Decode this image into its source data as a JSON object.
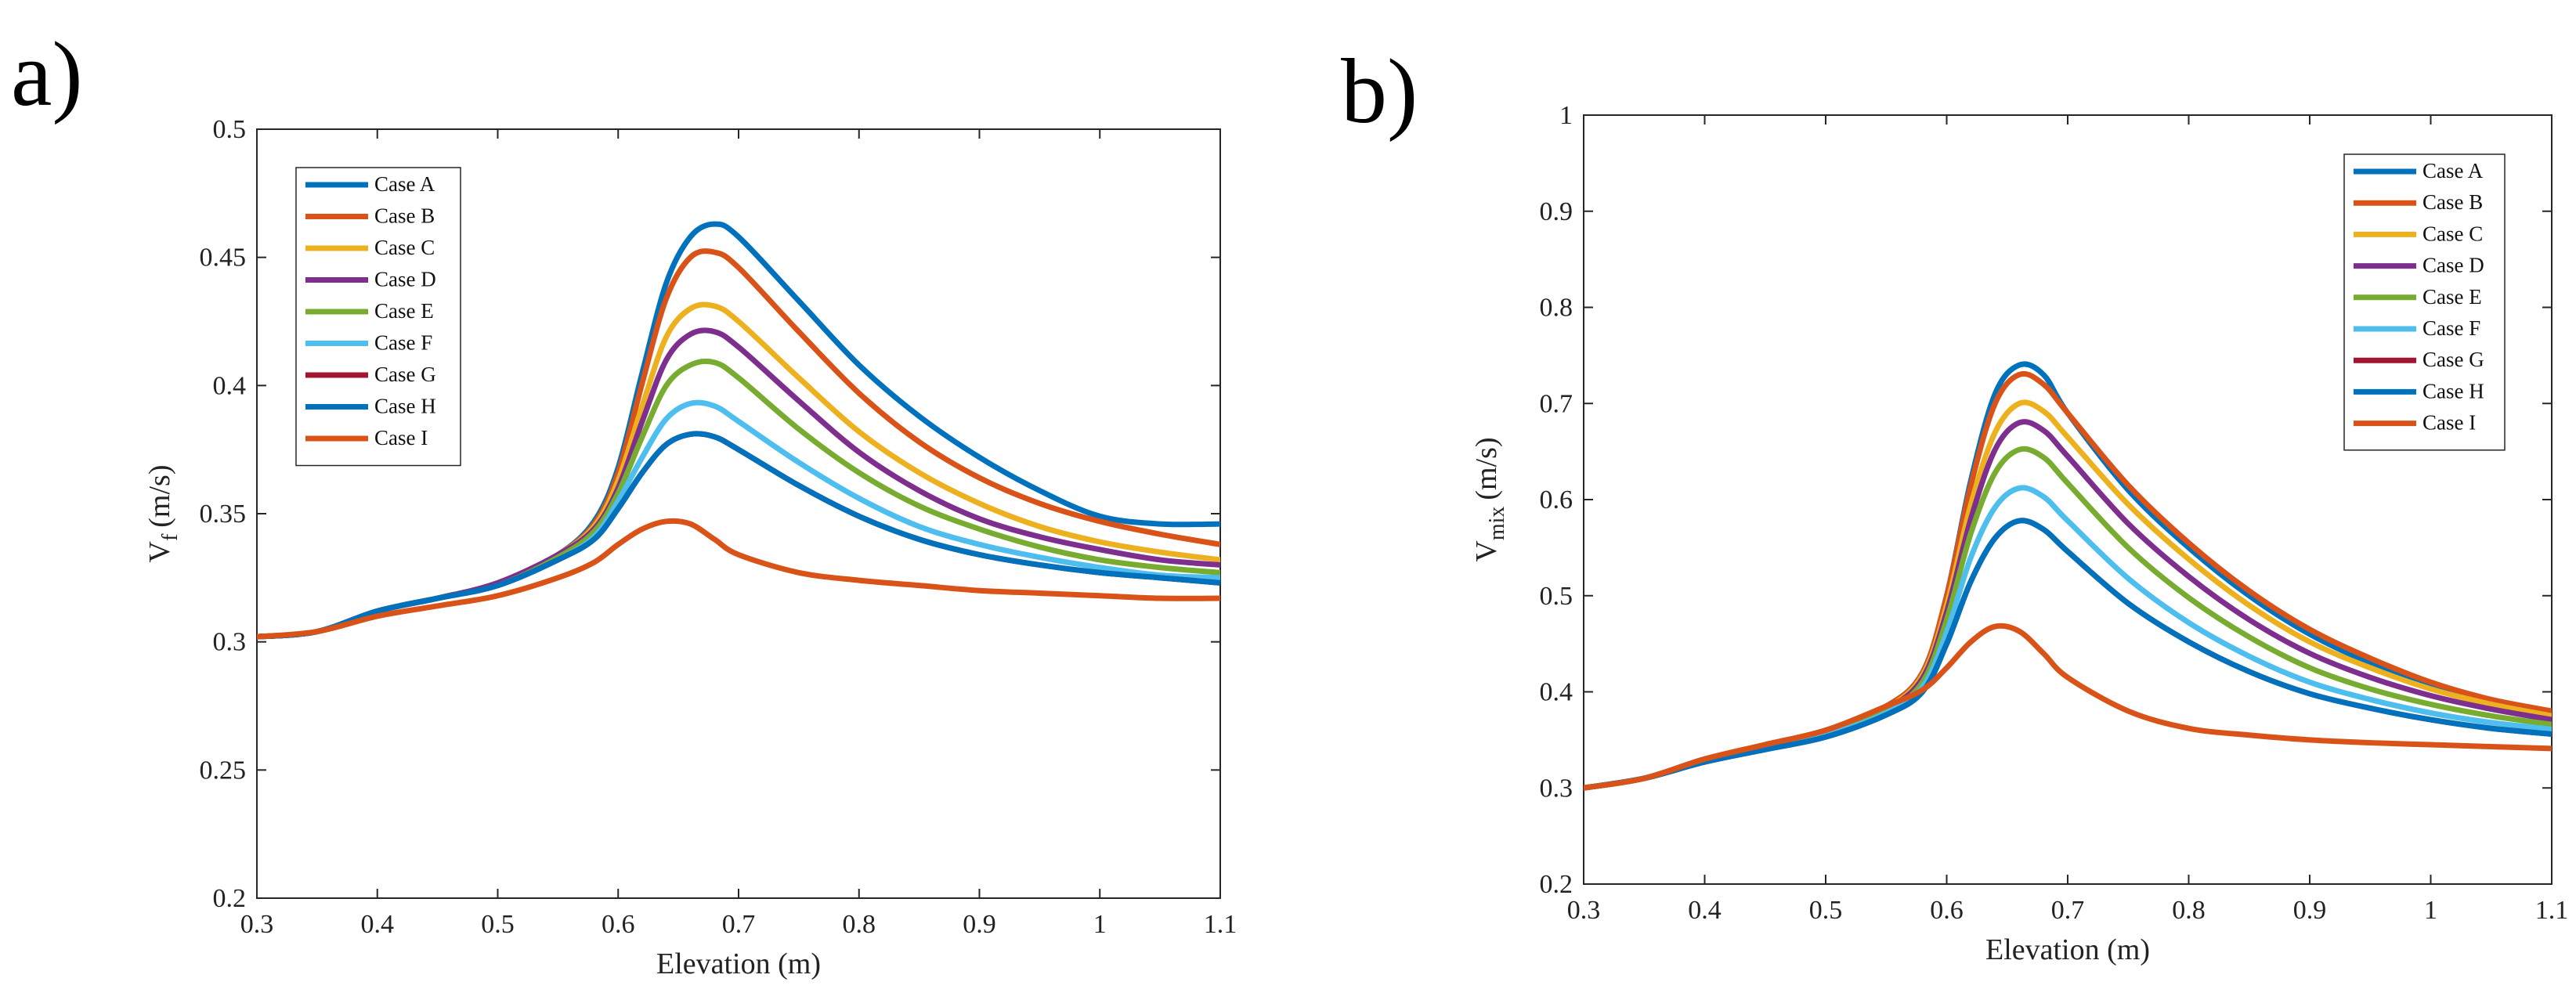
{
  "panels": [
    {
      "label": "a)"
    },
    {
      "label": "b)"
    }
  ],
  "chart_data": [
    {
      "type": "line",
      "panel": "a)",
      "xlabel": "Elevation (m)",
      "ylabel": "V",
      "ylabel_sub": "f",
      "ylabel_unit": "(m/s)",
      "xlim": [
        0.3,
        1.1
      ],
      "ylim": [
        0.2,
        0.5
      ],
      "xticks": [
        "0.3",
        "0.4",
        "0.5",
        "0.6",
        "0.7",
        "0.8",
        "0.9",
        "1",
        "1.1"
      ],
      "yticks": [
        "0.2",
        "0.25",
        "0.3",
        "0.35",
        "0.4",
        "0.45",
        "0.5"
      ],
      "legend_position": "top-left",
      "x": [
        0.3,
        0.35,
        0.4,
        0.45,
        0.5,
        0.55,
        0.58,
        0.6,
        0.62,
        0.64,
        0.66,
        0.68,
        0.7,
        0.75,
        0.8,
        0.85,
        0.9,
        0.95,
        1.0,
        1.05,
        1.1
      ],
      "series": [
        {
          "name": "Case A",
          "color": "#0072BD",
          "values": [
            0.302,
            0.304,
            0.312,
            0.317,
            0.323,
            0.334,
            0.347,
            0.368,
            0.405,
            0.44,
            0.458,
            0.463,
            0.458,
            0.433,
            0.408,
            0.388,
            0.372,
            0.359,
            0.349,
            0.346,
            0.346
          ]
        },
        {
          "name": "Case B",
          "color": "#D95319",
          "values": [
            0.302,
            0.304,
            0.312,
            0.317,
            0.323,
            0.334,
            0.346,
            0.366,
            0.401,
            0.434,
            0.45,
            0.452,
            0.446,
            0.421,
            0.397,
            0.378,
            0.364,
            0.354,
            0.347,
            0.342,
            0.338
          ]
        },
        {
          "name": "Case C",
          "color": "#EDB120",
          "values": [
            0.302,
            0.304,
            0.312,
            0.317,
            0.323,
            0.334,
            0.345,
            0.363,
            0.392,
            0.419,
            0.43,
            0.431,
            0.425,
            0.403,
            0.382,
            0.366,
            0.354,
            0.345,
            0.339,
            0.335,
            0.332
          ]
        },
        {
          "name": "Case D",
          "color": "#7E2F8E",
          "values": [
            0.302,
            0.304,
            0.312,
            0.317,
            0.323,
            0.334,
            0.344,
            0.36,
            0.386,
            0.41,
            0.42,
            0.421,
            0.415,
            0.394,
            0.374,
            0.359,
            0.348,
            0.341,
            0.336,
            0.332,
            0.33
          ]
        },
        {
          "name": "Case E",
          "color": "#77AC30",
          "values": [
            0.302,
            0.304,
            0.312,
            0.317,
            0.322,
            0.333,
            0.343,
            0.358,
            0.38,
            0.4,
            0.408,
            0.409,
            0.403,
            0.383,
            0.366,
            0.353,
            0.344,
            0.337,
            0.332,
            0.329,
            0.327
          ]
        },
        {
          "name": "Case F",
          "color": "#4DBEEE",
          "values": [
            0.302,
            0.304,
            0.312,
            0.317,
            0.322,
            0.332,
            0.341,
            0.355,
            0.372,
            0.387,
            0.393,
            0.392,
            0.386,
            0.37,
            0.356,
            0.345,
            0.338,
            0.333,
            0.329,
            0.326,
            0.325
          ]
        },
        {
          "name": "Case G",
          "color": "#A2142F",
          "values": [
            0.302,
            0.304,
            0.312,
            0.317,
            0.322,
            0.332,
            0.34,
            0.352,
            0.366,
            0.377,
            0.381,
            0.38,
            0.375,
            0.361,
            0.349,
            0.34,
            0.334,
            0.33,
            0.327,
            0.325,
            0.323
          ]
        },
        {
          "name": "Case H",
          "color": "#0072BD",
          "values": [
            0.302,
            0.304,
            0.312,
            0.317,
            0.322,
            0.332,
            0.34,
            0.352,
            0.366,
            0.377,
            0.381,
            0.38,
            0.375,
            0.361,
            0.349,
            0.34,
            0.334,
            0.33,
            0.327,
            0.325,
            0.323
          ]
        },
        {
          "name": "Case I",
          "color": "#D95319",
          "values": [
            0.302,
            0.304,
            0.31,
            0.314,
            0.318,
            0.325,
            0.331,
            0.338,
            0.344,
            0.347,
            0.346,
            0.34,
            0.334,
            0.327,
            0.324,
            0.322,
            0.32,
            0.319,
            0.318,
            0.317,
            0.317
          ]
        }
      ]
    },
    {
      "type": "line",
      "panel": "b)",
      "xlabel": "Elevation (m)",
      "ylabel": "V",
      "ylabel_sub": "mix",
      "ylabel_unit": "(m/s)",
      "xlim": [
        0.3,
        1.1
      ],
      "ylim": [
        0.2,
        1.0
      ],
      "xticks": [
        "0.3",
        "0.4",
        "0.5",
        "0.6",
        "0.7",
        "0.8",
        "0.9",
        "1",
        "1.1"
      ],
      "yticks": [
        "0.2",
        "0.3",
        "0.4",
        "0.5",
        "0.6",
        "0.7",
        "0.8",
        "0.9",
        "1"
      ],
      "legend_position": "top-right",
      "x": [
        0.3,
        0.35,
        0.4,
        0.45,
        0.5,
        0.55,
        0.58,
        0.6,
        0.62,
        0.64,
        0.66,
        0.68,
        0.7,
        0.75,
        0.8,
        0.85,
        0.9,
        0.95,
        1.0,
        1.05,
        1.1
      ],
      "series": [
        {
          "name": "Case A",
          "color": "#0072BD",
          "values": [
            0.3,
            0.31,
            0.33,
            0.345,
            0.36,
            0.385,
            0.42,
            0.5,
            0.62,
            0.71,
            0.74,
            0.73,
            0.69,
            0.61,
            0.55,
            0.5,
            0.46,
            0.43,
            0.405,
            0.388,
            0.375
          ]
        },
        {
          "name": "Case B",
          "color": "#D95319",
          "values": [
            0.3,
            0.31,
            0.33,
            0.345,
            0.36,
            0.385,
            0.42,
            0.5,
            0.615,
            0.7,
            0.73,
            0.72,
            0.69,
            0.615,
            0.555,
            0.505,
            0.465,
            0.435,
            0.41,
            0.392,
            0.38
          ]
        },
        {
          "name": "Case C",
          "color": "#EDB120",
          "values": [
            0.3,
            0.31,
            0.33,
            0.345,
            0.358,
            0.383,
            0.417,
            0.49,
            0.595,
            0.67,
            0.7,
            0.692,
            0.665,
            0.595,
            0.538,
            0.49,
            0.452,
            0.425,
            0.403,
            0.387,
            0.375
          ]
        },
        {
          "name": "Case D",
          "color": "#7E2F8E",
          "values": [
            0.3,
            0.31,
            0.33,
            0.344,
            0.357,
            0.382,
            0.414,
            0.483,
            0.58,
            0.652,
            0.68,
            0.672,
            0.645,
            0.575,
            0.52,
            0.475,
            0.44,
            0.415,
            0.396,
            0.382,
            0.371
          ]
        },
        {
          "name": "Case E",
          "color": "#77AC30",
          "values": [
            0.3,
            0.31,
            0.329,
            0.343,
            0.356,
            0.38,
            0.41,
            0.475,
            0.565,
            0.628,
            0.652,
            0.644,
            0.617,
            0.55,
            0.498,
            0.457,
            0.425,
            0.403,
            0.387,
            0.375,
            0.366
          ]
        },
        {
          "name": "Case F",
          "color": "#4DBEEE",
          "values": [
            0.3,
            0.31,
            0.328,
            0.342,
            0.355,
            0.378,
            0.405,
            0.462,
            0.54,
            0.592,
            0.612,
            0.603,
            0.578,
            0.518,
            0.472,
            0.437,
            0.41,
            0.392,
            0.378,
            0.368,
            0.361
          ]
        },
        {
          "name": "Case G",
          "color": "#A2142F",
          "values": [
            0.3,
            0.31,
            0.327,
            0.34,
            0.353,
            0.376,
            0.4,
            0.45,
            0.515,
            0.56,
            0.578,
            0.569,
            0.546,
            0.492,
            0.452,
            0.421,
            0.398,
            0.383,
            0.371,
            0.362,
            0.356
          ]
        },
        {
          "name": "Case H",
          "color": "#0072BD",
          "values": [
            0.3,
            0.31,
            0.327,
            0.34,
            0.353,
            0.376,
            0.4,
            0.45,
            0.515,
            0.56,
            0.578,
            0.569,
            0.546,
            0.492,
            0.452,
            0.421,
            0.398,
            0.383,
            0.371,
            0.362,
            0.356
          ]
        },
        {
          "name": "Case I",
          "color": "#D95319",
          "values": [
            0.3,
            0.31,
            0.33,
            0.345,
            0.36,
            0.385,
            0.402,
            0.425,
            0.452,
            0.468,
            0.463,
            0.44,
            0.415,
            0.38,
            0.362,
            0.355,
            0.35,
            0.347,
            0.345,
            0.343,
            0.341
          ]
        }
      ]
    }
  ]
}
